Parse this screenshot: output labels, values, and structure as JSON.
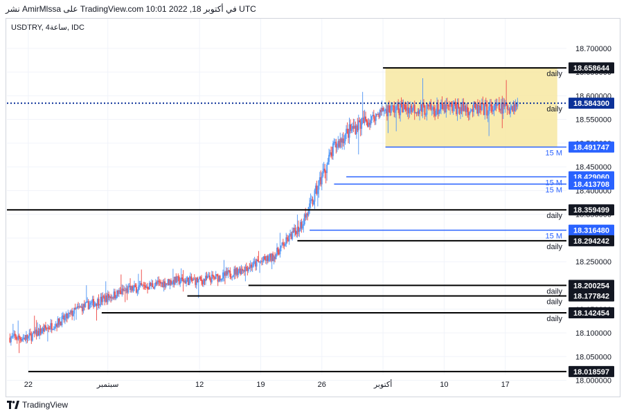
{
  "header": {
    "caption": "نشر AmirMlssa على TradingView.com 10:01 2022 ,18 في أكتوبر UTC"
  },
  "symbol_line": "USDTRY, 4ساعة, IDC",
  "footer": {
    "brand": "TradingView"
  },
  "colors": {
    "up": "#5b9cf6",
    "down": "#ef5350",
    "black_line": "#000000",
    "blue_line": "#2962ff",
    "box_fill": "#f7e8a1",
    "grid": "#f0f3fa",
    "axis_text": "#131722"
  },
  "chart_data": {
    "type": "candlestick",
    "ylim": [
      18.0125,
      18.7625
    ],
    "y_ticks": [
      "18.700000",
      "18.650000",
      "18.600000",
      "18.550000",
      "18.500000",
      "18.450000",
      "18.400000",
      "18.350000",
      "18.300000",
      "18.250000",
      "18.200000",
      "18.150000",
      "18.100000",
      "18.050000",
      "18.000000"
    ],
    "x_ticks": [
      {
        "label": "22",
        "t": 0
      },
      {
        "label": "سبتمبر",
        "t": 13
      },
      {
        "label": "12",
        "t": 28
      },
      {
        "label": "19",
        "t": 38
      },
      {
        "label": "26",
        "t": 48
      },
      {
        "label": "أكتوبر",
        "t": 58
      },
      {
        "label": "10",
        "t": 68
      },
      {
        "label": "17",
        "t": 78
      }
    ],
    "x_range": [
      -3.5,
      88
    ],
    "last_price": 18.5843,
    "price_path": [
      [
        -3.0,
        18.09
      ],
      [
        0.0,
        18.09
      ],
      [
        3.0,
        18.11
      ],
      [
        6.0,
        18.13
      ],
      [
        8.0,
        18.15
      ],
      [
        12.0,
        18.17
      ],
      [
        16.0,
        18.19
      ],
      [
        20.0,
        18.2
      ],
      [
        24.0,
        18.21
      ],
      [
        28.0,
        18.21
      ],
      [
        32.0,
        18.22
      ],
      [
        36.0,
        18.24
      ],
      [
        40.0,
        18.26
      ],
      [
        42.0,
        18.29
      ],
      [
        44.0,
        18.32
      ],
      [
        46.0,
        18.36
      ],
      [
        48.0,
        18.43
      ],
      [
        50.0,
        18.49
      ],
      [
        52.0,
        18.52
      ],
      [
        54.0,
        18.54
      ],
      [
        56.0,
        18.55
      ],
      [
        58.0,
        18.57
      ],
      [
        62.0,
        18.575
      ],
      [
        66.0,
        18.57
      ],
      [
        70.0,
        18.575
      ],
      [
        74.0,
        18.57
      ],
      [
        78.0,
        18.575
      ],
      [
        80.0,
        18.58
      ]
    ],
    "box": {
      "from": 58.4,
      "to": 86.5,
      "low": 18.491747,
      "high": 18.658644
    },
    "levels": [
      {
        "price": 18.658644,
        "label": "18.658644",
        "from": 58.0,
        "style": "solid",
        "kind": "black",
        "tag": "daily"
      },
      {
        "price": 18.5843,
        "label": "18.584300",
        "from": -3.5,
        "style": "dotted",
        "kind": "navy",
        "tag": "daily"
      },
      {
        "price": 18.491747,
        "label": "18.491747",
        "from": 58.4,
        "style": "solid",
        "kind": "blue",
        "tag": "15 M"
      },
      {
        "price": 18.42906,
        "label": "18.429060",
        "from": 52.0,
        "style": "solid",
        "kind": "blue",
        "tag": "15 M"
      },
      {
        "price": 18.413708,
        "label": "18.413708",
        "from": 50.0,
        "style": "solid",
        "kind": "blue",
        "tag": "15 M"
      },
      {
        "price": 18.359499,
        "label": "18.359499",
        "from": -3.5,
        "style": "solid",
        "kind": "black",
        "tag": "daily"
      },
      {
        "price": 18.31648,
        "label": "18.316480",
        "from": 46.0,
        "style": "solid",
        "kind": "blue",
        "tag": "15 M"
      },
      {
        "price": 18.294242,
        "label": "18.294242",
        "from": 44.0,
        "style": "solid",
        "kind": "black",
        "tag": "daily"
      },
      {
        "price": 18.200254,
        "label": "18.200254",
        "from": 36.0,
        "style": "solid",
        "kind": "black",
        "tag": "daily"
      },
      {
        "price": 18.177842,
        "label": "18.177842",
        "from": 26.0,
        "style": "solid",
        "kind": "black",
        "tag": "daily"
      },
      {
        "price": 18.142454,
        "label": "18.142454",
        "from": 12.0,
        "style": "solid",
        "kind": "black",
        "tag": "daily"
      },
      {
        "price": 18.018597,
        "label": "18.018597",
        "from": 0.0,
        "style": "solid",
        "kind": "black",
        "tag": ""
      }
    ]
  }
}
